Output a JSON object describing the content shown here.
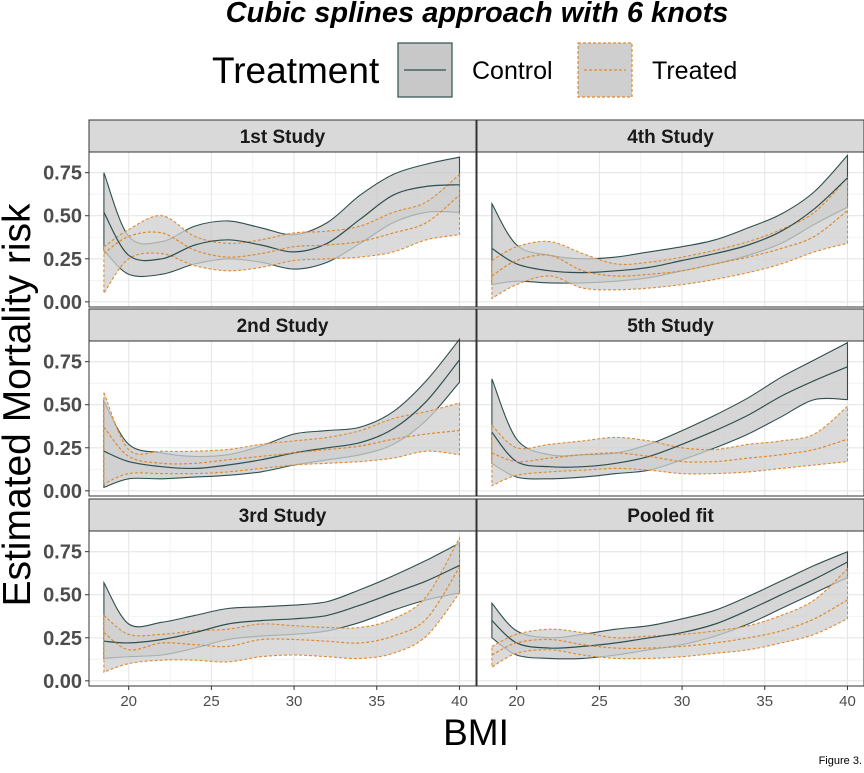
{
  "chart_data": {
    "type": "line",
    "title": "Cubic splines approach with 6 knots",
    "xlabel": "BMI",
    "ylabel": "Estimated Mortality risk",
    "caption": "Figure 3.",
    "legend": {
      "title": "Treatment",
      "placement": "top",
      "entries": [
        {
          "name": "Control",
          "line_color": "#2f4f4f",
          "fill_color": "#c8c8c8",
          "dash": "solid"
        },
        {
          "name": "Treated",
          "line_color": "#e08a2e",
          "fill_color": "#cfcfcf",
          "dash": "dashed"
        }
      ]
    },
    "x_ticks": [
      20,
      25,
      30,
      35,
      40
    ],
    "y_ticks": [
      0.0,
      0.25,
      0.5,
      0.75
    ],
    "y_tick_labels": [
      "0.00",
      "0.25",
      "0.50",
      "0.75"
    ],
    "xlim": [
      17.6,
      41.0
    ],
    "ylim": [
      -0.03,
      0.87
    ],
    "grid": true,
    "x": [
      18.5,
      20,
      22,
      24,
      26,
      28,
      30,
      32,
      34,
      36,
      38,
      40
    ],
    "panels": [
      {
        "title": "1st Study",
        "series": [
          {
            "name": "Control",
            "fit": [
              0.52,
              0.27,
              0.25,
              0.33,
              0.36,
              0.33,
              0.29,
              0.34,
              0.48,
              0.62,
              0.67,
              0.68
            ],
            "lower": [
              0.3,
              0.16,
              0.16,
              0.22,
              0.25,
              0.23,
              0.19,
              0.23,
              0.34,
              0.46,
              0.52,
              0.52
            ],
            "upper": [
              0.75,
              0.38,
              0.35,
              0.44,
              0.47,
              0.43,
              0.39,
              0.46,
              0.62,
              0.74,
              0.8,
              0.84
            ]
          },
          {
            "name": "Treated",
            "fit": [
              0.28,
              0.38,
              0.4,
              0.3,
              0.26,
              0.28,
              0.32,
              0.33,
              0.35,
              0.4,
              0.46,
              0.62
            ],
            "lower": [
              0.05,
              0.25,
              0.28,
              0.21,
              0.18,
              0.2,
              0.24,
              0.25,
              0.26,
              0.29,
              0.36,
              0.39
            ],
            "upper": [
              0.32,
              0.42,
              0.5,
              0.38,
              0.34,
              0.36,
              0.4,
              0.41,
              0.44,
              0.52,
              0.58,
              0.74
            ]
          }
        ]
      },
      {
        "title": "4th Study",
        "series": [
          {
            "name": "Control",
            "fit": [
              0.31,
              0.22,
              0.18,
              0.17,
              0.18,
              0.2,
              0.24,
              0.28,
              0.33,
              0.41,
              0.54,
              0.72
            ],
            "lower": [
              0.1,
              0.12,
              0.11,
              0.11,
              0.12,
              0.14,
              0.18,
              0.22,
              0.27,
              0.34,
              0.45,
              0.55
            ],
            "upper": [
              0.57,
              0.33,
              0.27,
              0.25,
              0.26,
              0.29,
              0.32,
              0.36,
              0.43,
              0.51,
              0.64,
              0.85
            ]
          },
          {
            "name": "Treated",
            "fit": [
              0.15,
              0.24,
              0.27,
              0.18,
              0.15,
              0.16,
              0.18,
              0.22,
              0.26,
              0.31,
              0.38,
              0.53
            ],
            "lower": [
              0.02,
              0.1,
              0.15,
              0.08,
              0.07,
              0.08,
              0.1,
              0.13,
              0.17,
              0.22,
              0.29,
              0.34
            ],
            "upper": [
              0.24,
              0.32,
              0.35,
              0.28,
              0.22,
              0.23,
              0.26,
              0.3,
              0.35,
              0.42,
              0.52,
              0.72
            ]
          }
        ]
      },
      {
        "title": "2nd Study",
        "series": [
          {
            "name": "Control",
            "fit": [
              0.23,
              0.17,
              0.14,
              0.13,
              0.15,
              0.18,
              0.22,
              0.25,
              0.28,
              0.36,
              0.52,
              0.76
            ],
            "lower": [
              0.02,
              0.07,
              0.07,
              0.08,
              0.09,
              0.11,
              0.15,
              0.18,
              0.21,
              0.27,
              0.41,
              0.63
            ],
            "upper": [
              0.52,
              0.27,
              0.22,
              0.2,
              0.21,
              0.26,
              0.33,
              0.35,
              0.37,
              0.46,
              0.64,
              0.88
            ]
          },
          {
            "name": "Treated",
            "fit": [
              0.37,
              0.2,
              0.16,
              0.16,
              0.18,
              0.2,
              0.22,
              0.24,
              0.26,
              0.3,
              0.33,
              0.35
            ],
            "lower": [
              0.04,
              0.1,
              0.1,
              0.1,
              0.11,
              0.13,
              0.15,
              0.16,
              0.17,
              0.19,
              0.23,
              0.21
            ],
            "upper": [
              0.57,
              0.24,
              0.23,
              0.23,
              0.24,
              0.27,
              0.29,
              0.31,
              0.35,
              0.42,
              0.46,
              0.51
            ]
          }
        ]
      },
      {
        "title": "5th Study",
        "series": [
          {
            "name": "Control",
            "fit": [
              0.34,
              0.17,
              0.14,
              0.14,
              0.16,
              0.2,
              0.27,
              0.35,
              0.44,
              0.55,
              0.64,
              0.72
            ],
            "lower": [
              0.16,
              0.08,
              0.07,
              0.08,
              0.1,
              0.12,
              0.18,
              0.25,
              0.33,
              0.43,
              0.53,
              0.53
            ],
            "upper": [
              0.65,
              0.3,
              0.21,
              0.21,
              0.22,
              0.27,
              0.35,
              0.44,
              0.54,
              0.66,
              0.76,
              0.86
            ]
          },
          {
            "name": "Treated",
            "fit": [
              0.22,
              0.17,
              0.19,
              0.21,
              0.22,
              0.2,
              0.17,
              0.17,
              0.19,
              0.21,
              0.24,
              0.3
            ],
            "lower": [
              0.03,
              0.09,
              0.11,
              0.12,
              0.13,
              0.12,
              0.1,
              0.1,
              0.11,
              0.13,
              0.15,
              0.17
            ],
            "upper": [
              0.38,
              0.25,
              0.27,
              0.29,
              0.31,
              0.29,
              0.25,
              0.24,
              0.27,
              0.29,
              0.33,
              0.49
            ]
          }
        ]
      },
      {
        "title": "3rd Study",
        "series": [
          {
            "name": "Control",
            "fit": [
              0.23,
              0.22,
              0.24,
              0.28,
              0.33,
              0.35,
              0.36,
              0.38,
              0.44,
              0.51,
              0.58,
              0.67
            ],
            "lower": [
              0.13,
              0.14,
              0.15,
              0.19,
              0.24,
              0.26,
              0.27,
              0.29,
              0.34,
              0.41,
              0.47,
              0.51
            ],
            "upper": [
              0.57,
              0.33,
              0.34,
              0.38,
              0.42,
              0.43,
              0.44,
              0.46,
              0.53,
              0.61,
              0.7,
              0.8
            ]
          },
          {
            "name": "Treated",
            "fit": [
              0.28,
              0.18,
              0.22,
              0.21,
              0.2,
              0.24,
              0.24,
              0.23,
              0.22,
              0.26,
              0.36,
              0.66
            ],
            "lower": [
              0.05,
              0.1,
              0.12,
              0.12,
              0.11,
              0.14,
              0.15,
              0.14,
              0.13,
              0.16,
              0.26,
              0.51
            ],
            "upper": [
              0.38,
              0.27,
              0.27,
              0.29,
              0.3,
              0.33,
              0.32,
              0.31,
              0.31,
              0.36,
              0.49,
              0.83
            ]
          }
        ]
      },
      {
        "title": "Pooled fit",
        "series": [
          {
            "name": "Control",
            "fit": [
              0.35,
              0.22,
              0.19,
              0.2,
              0.22,
              0.25,
              0.28,
              0.33,
              0.41,
              0.5,
              0.59,
              0.69
            ],
            "lower": [
              0.25,
              0.15,
              0.13,
              0.13,
              0.15,
              0.18,
              0.21,
              0.26,
              0.33,
              0.42,
              0.51,
              0.6
            ],
            "upper": [
              0.45,
              0.29,
              0.25,
              0.27,
              0.3,
              0.32,
              0.36,
              0.41,
              0.49,
              0.58,
              0.67,
              0.75
            ]
          },
          {
            "name": "Treated",
            "fit": [
              0.15,
              0.22,
              0.24,
              0.21,
              0.19,
              0.19,
              0.2,
              0.22,
              0.25,
              0.29,
              0.36,
              0.47
            ],
            "lower": [
              0.08,
              0.16,
              0.18,
              0.15,
              0.13,
              0.13,
              0.14,
              0.16,
              0.18,
              0.22,
              0.27,
              0.36
            ],
            "upper": [
              0.2,
              0.27,
              0.3,
              0.28,
              0.25,
              0.26,
              0.27,
              0.29,
              0.32,
              0.38,
              0.47,
              0.65
            ]
          }
        ]
      }
    ]
  }
}
